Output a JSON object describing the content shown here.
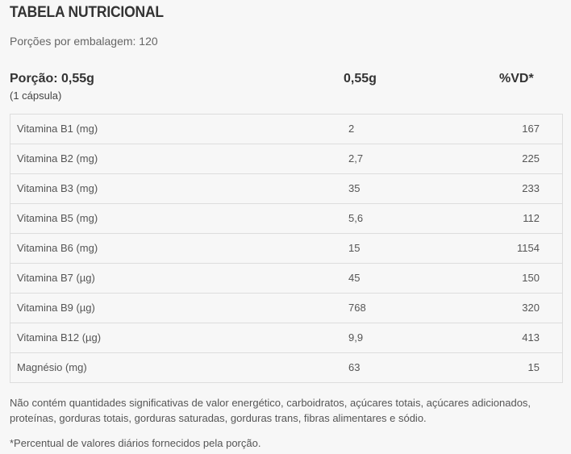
{
  "title": "TABELA NUTRICIONAL",
  "servings_per_package": "Porções por embalagem: 120",
  "portion": {
    "label": "Porção: 0,55g",
    "sublabel": "(1 cápsula)",
    "amount_header": "0,55g",
    "vd_header": "%VD*"
  },
  "rows": [
    {
      "name": "Vitamina B1 (mg)",
      "amount": "2",
      "vd": "167"
    },
    {
      "name": "Vitamina B2 (mg)",
      "amount": "2,7",
      "vd": "225"
    },
    {
      "name": "Vitamina B3 (mg)",
      "amount": "35",
      "vd": "233"
    },
    {
      "name": "Vitamina B5 (mg)",
      "amount": "5,6",
      "vd": "112"
    },
    {
      "name": "Vitamina B6 (mg)",
      "amount": "15",
      "vd": "1154"
    },
    {
      "name": "Vitamina B7 (µg)",
      "amount": "45",
      "vd": "150"
    },
    {
      "name": "Vitamina B9 (µg)",
      "amount": "768",
      "vd": "320"
    },
    {
      "name": "Vitamina B12 (µg)",
      "amount": "9,9",
      "vd": "413"
    },
    {
      "name": "Magnésio (mg)",
      "amount": "63",
      "vd": "15"
    }
  ],
  "note": "Não contém quantidades significativas de valor energético, carboidratos, açúcares totais, açúcares adicionados, proteínas, gorduras totais, gorduras saturadas, gorduras trans, fibras alimentares e sódio.",
  "footnote": "*Percentual de valores diários fornecidos pela porção."
}
